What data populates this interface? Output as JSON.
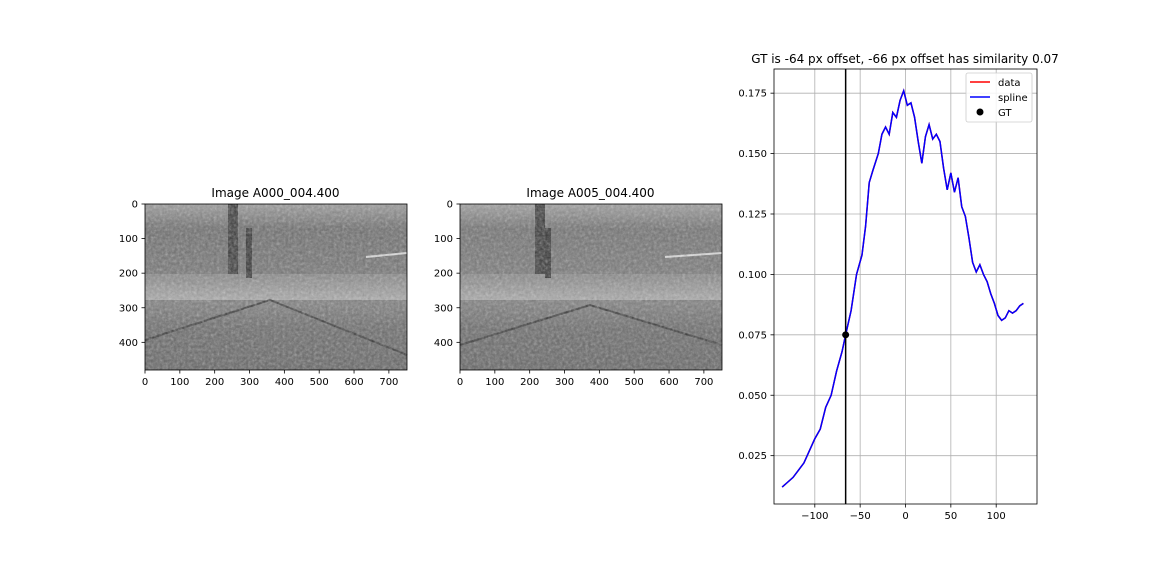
{
  "chart_data": [
    {
      "type": "image",
      "title": "Image A000_004.400",
      "x_ticks": [
        "0",
        "100",
        "200",
        "300",
        "400",
        "500",
        "600",
        "700"
      ],
      "y_ticks": [
        "0",
        "100",
        "200",
        "300",
        "400"
      ],
      "xlim": [
        0,
        752
      ],
      "ylim": [
        480,
        0
      ],
      "colormap": "grayscale"
    },
    {
      "type": "image",
      "title": "Image A005_004.400",
      "x_ticks": [
        "0",
        "100",
        "200",
        "300",
        "400",
        "500",
        "600",
        "700"
      ],
      "y_ticks": [
        "0",
        "100",
        "200",
        "300",
        "400"
      ],
      "xlim": [
        0,
        752
      ],
      "ylim": [
        480,
        0
      ],
      "colormap": "grayscale"
    },
    {
      "type": "line",
      "title": "GT is -64 px offset, -66 px offset has similarity 0.07",
      "xlim": [
        -145,
        145
      ],
      "ylim": [
        0.005,
        0.185
      ],
      "x_ticks": [
        "−100",
        "−50",
        "0",
        "50",
        "100"
      ],
      "y_ticks": [
        "0.025",
        "0.050",
        "0.075",
        "0.100",
        "0.125",
        "0.150",
        "0.175"
      ],
      "grid": true,
      "legend_position": "upper right",
      "legend": [
        {
          "label": "data",
          "color": "#ff0000",
          "marker": "line"
        },
        {
          "label": "spline",
          "color": "#0000ff",
          "marker": "line"
        },
        {
          "label": "GT",
          "color": "#000000",
          "marker": "dot"
        }
      ],
      "vline_x": -66,
      "gt_point": {
        "x": -66,
        "y": 0.075
      },
      "series": [
        {
          "name": "data",
          "color": "#ff0000",
          "points": [
            [
              -136,
              0.012
            ],
            [
              -130,
              0.014
            ],
            [
              -124,
              0.016
            ],
            [
              -118,
              0.019
            ],
            [
              -112,
              0.022
            ],
            [
              -106,
              0.027
            ],
            [
              -100,
              0.032
            ],
            [
              -94,
              0.036
            ],
            [
              -88,
              0.045
            ],
            [
              -82,
              0.05
            ],
            [
              -76,
              0.06
            ],
            [
              -70,
              0.068
            ],
            [
              -66,
              0.075
            ],
            [
              -60,
              0.085
            ],
            [
              -54,
              0.1
            ],
            [
              -48,
              0.108
            ],
            [
              -44,
              0.12
            ],
            [
              -40,
              0.138
            ],
            [
              -36,
              0.143
            ],
            [
              -30,
              0.15
            ],
            [
              -26,
              0.158
            ],
            [
              -22,
              0.161
            ],
            [
              -18,
              0.158
            ],
            [
              -14,
              0.167
            ],
            [
              -10,
              0.165
            ],
            [
              -6,
              0.172
            ],
            [
              -2,
              0.176
            ],
            [
              2,
              0.17
            ],
            [
              6,
              0.171
            ],
            [
              10,
              0.165
            ],
            [
              14,
              0.155
            ],
            [
              18,
              0.146
            ],
            [
              22,
              0.157
            ],
            [
              26,
              0.162
            ],
            [
              30,
              0.156
            ],
            [
              34,
              0.158
            ],
            [
              38,
              0.155
            ],
            [
              42,
              0.144
            ],
            [
              46,
              0.135
            ],
            [
              50,
              0.142
            ],
            [
              54,
              0.134
            ],
            [
              58,
              0.14
            ],
            [
              62,
              0.128
            ],
            [
              66,
              0.124
            ],
            [
              70,
              0.115
            ],
            [
              74,
              0.105
            ],
            [
              78,
              0.101
            ],
            [
              82,
              0.104
            ],
            [
              86,
              0.1
            ],
            [
              90,
              0.097
            ],
            [
              94,
              0.092
            ],
            [
              98,
              0.088
            ],
            [
              102,
              0.083
            ],
            [
              106,
              0.081
            ],
            [
              110,
              0.082
            ],
            [
              114,
              0.085
            ],
            [
              118,
              0.084
            ],
            [
              122,
              0.085
            ],
            [
              126,
              0.087
            ],
            [
              130,
              0.088
            ]
          ]
        },
        {
          "name": "spline",
          "color": "#0000ff",
          "points": [
            [
              -136,
              0.012
            ],
            [
              -130,
              0.014
            ],
            [
              -124,
              0.016
            ],
            [
              -118,
              0.019
            ],
            [
              -112,
              0.022
            ],
            [
              -106,
              0.027
            ],
            [
              -100,
              0.032
            ],
            [
              -94,
              0.036
            ],
            [
              -88,
              0.045
            ],
            [
              -82,
              0.05
            ],
            [
              -76,
              0.06
            ],
            [
              -70,
              0.068
            ],
            [
              -66,
              0.075
            ],
            [
              -60,
              0.085
            ],
            [
              -54,
              0.1
            ],
            [
              -48,
              0.108
            ],
            [
              -44,
              0.12
            ],
            [
              -40,
              0.138
            ],
            [
              -36,
              0.143
            ],
            [
              -30,
              0.15
            ],
            [
              -26,
              0.158
            ],
            [
              -22,
              0.161
            ],
            [
              -18,
              0.158
            ],
            [
              -14,
              0.167
            ],
            [
              -10,
              0.165
            ],
            [
              -6,
              0.172
            ],
            [
              -2,
              0.176
            ],
            [
              2,
              0.17
            ],
            [
              6,
              0.171
            ],
            [
              10,
              0.165
            ],
            [
              14,
              0.155
            ],
            [
              18,
              0.146
            ],
            [
              22,
              0.157
            ],
            [
              26,
              0.162
            ],
            [
              30,
              0.156
            ],
            [
              34,
              0.158
            ],
            [
              38,
              0.155
            ],
            [
              42,
              0.144
            ],
            [
              46,
              0.135
            ],
            [
              50,
              0.142
            ],
            [
              54,
              0.134
            ],
            [
              58,
              0.14
            ],
            [
              62,
              0.128
            ],
            [
              66,
              0.124
            ],
            [
              70,
              0.115
            ],
            [
              74,
              0.105
            ],
            [
              78,
              0.101
            ],
            [
              82,
              0.104
            ],
            [
              86,
              0.1
            ],
            [
              90,
              0.097
            ],
            [
              94,
              0.092
            ],
            [
              98,
              0.088
            ],
            [
              102,
              0.083
            ],
            [
              106,
              0.081
            ],
            [
              110,
              0.082
            ],
            [
              114,
              0.085
            ],
            [
              118,
              0.084
            ],
            [
              122,
              0.085
            ],
            [
              126,
              0.087
            ],
            [
              130,
              0.088
            ]
          ]
        }
      ]
    }
  ]
}
